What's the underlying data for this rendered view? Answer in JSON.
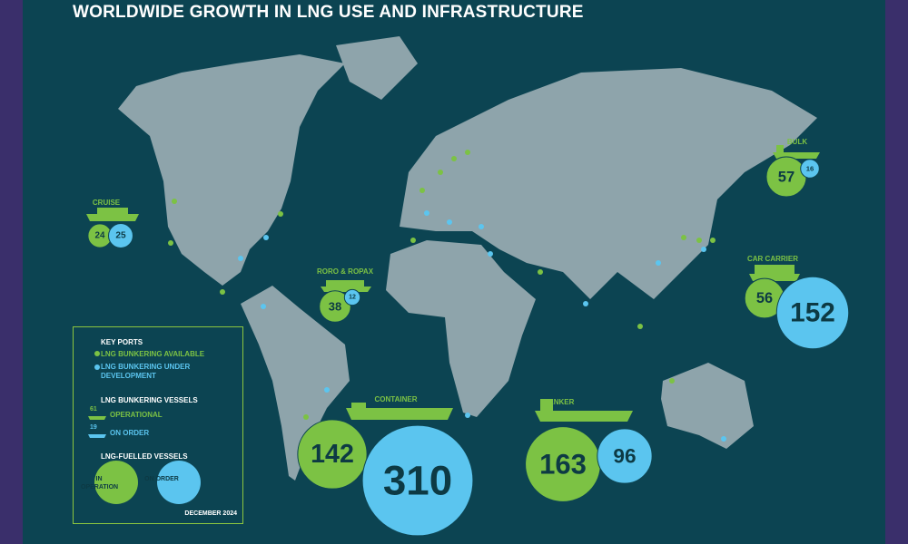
{
  "title": "WORLDWIDE GROWTH IN LNG USE AND INFRASTRUCTURE",
  "vessels": [
    {
      "label": "CRUISE",
      "in_operation": 24,
      "on_order": 25
    },
    {
      "label": "BULK",
      "in_operation": 57,
      "on_order": 16
    },
    {
      "label": "CAR CARRIER",
      "in_operation": 56,
      "on_order": 152
    },
    {
      "label": "RORO & ROPAX",
      "in_operation": 38,
      "on_order": 12
    },
    {
      "label": "CONTAINER",
      "in_operation": 142,
      "on_order": 310
    },
    {
      "label": "TANKER",
      "in_operation": 163,
      "on_order": 96
    }
  ],
  "legend": {
    "key_ports": "KEY PORTS",
    "available": "LNG BUNKERING AVAILABLE",
    "under_development": "LNG BUNKERING UNDER DEVELOPMENT",
    "bunkering_vessels": "LNG BUNKERING VESSELS",
    "operational_count": 61,
    "operational": "OPERATIONAL",
    "on_order_count": 19,
    "on_order": "ON ORDER",
    "fuelled_vessels": "LNG-FUELLED VESSELS",
    "in_operation": "IN OPERATION",
    "on_order_short": "ON ORDER",
    "date": "DECEMBER 2024"
  }
}
